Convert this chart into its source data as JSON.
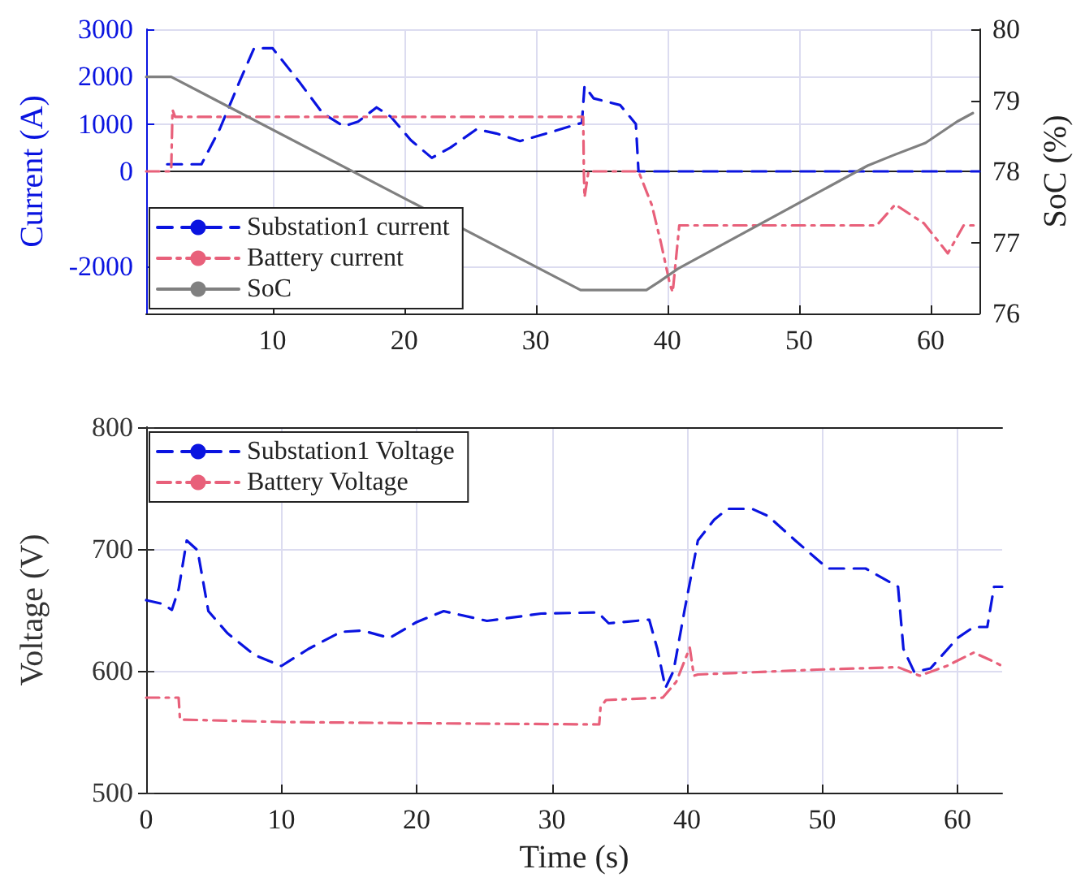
{
  "chart_data": [
    {
      "type": "line",
      "ylabel": "Current (A)",
      "y2label": "SoC (%)",
      "xlim": [
        0.4,
        63.7
      ],
      "xticks": [
        10,
        20,
        30,
        40,
        50,
        60
      ],
      "ylim": [
        -3000,
        3000
      ],
      "yticks": [
        -2000,
        0,
        1000,
        2000,
        3000
      ],
      "y2lim": [
        76,
        80
      ],
      "y2ticks": [
        76,
        77,
        78,
        79,
        80
      ],
      "grid": true,
      "legend": "bottom left",
      "marker": "none",
      "series": [
        {
          "name": "Substation1 current",
          "color": "#0a14e0",
          "line_style": "dashed",
          "x": [
            2.0,
            4.6,
            6,
            7.5,
            8.6,
            10,
            12,
            13.8,
            15.4,
            16.5,
            17.9,
            19,
            20.5,
            22.1,
            23.5,
            25.5,
            27,
            28.8,
            30.5,
            33.5,
            33.7,
            34.4,
            36.4,
            37.6,
            37.8,
            63.7
          ],
          "values": [
            150,
            150,
            900,
            1900,
            2600,
            2600,
            1900,
            1230,
            950,
            1050,
            1350,
            1150,
            660,
            285,
            500,
            890,
            800,
            640,
            775,
            1025,
            1800,
            1540,
            1400,
            1000,
            0,
            0
          ]
        },
        {
          "name": "Battery current",
          "color": "#e8607a",
          "line_style": "dashdot",
          "x": [
            0.4,
            2.3,
            2.4,
            2.6,
            33.6,
            33.65,
            33.7,
            34,
            37.8,
            38.8,
            39.5,
            40.2,
            40.4,
            40.9,
            55.9,
            57.3,
            59.5,
            61.3,
            62.5,
            63.7
          ],
          "values": [
            0,
            0,
            1300,
            1150,
            1150,
            0,
            -550,
            0,
            0,
            -700,
            -1500,
            -2400,
            -2550,
            -1140,
            -1140,
            -700,
            -1100,
            -1730,
            -1140,
            -1140
          ]
        },
        {
          "name": "SoC",
          "color": "#808080",
          "line_style": "solid",
          "axis": "y2",
          "x": [
            0.4,
            2.3,
            33.4,
            38.4,
            39.4,
            40.8,
            55.2,
            57.2,
            59.6,
            62.0,
            63.2
          ],
          "values": [
            79.33,
            79.33,
            76.33,
            76.33,
            76.45,
            76.63,
            78.08,
            78.23,
            78.4,
            78.7,
            78.82
          ]
        }
      ]
    },
    {
      "type": "line",
      "xlabel": "Time (s)",
      "ylabel": "Voltage (V)",
      "xlim": [
        0,
        63.3
      ],
      "xticks": [
        0,
        10,
        20,
        30,
        40,
        50,
        60
      ],
      "ylim": [
        500,
        800
      ],
      "yticks": [
        500,
        600,
        700,
        800
      ],
      "grid": true,
      "legend": "top left",
      "marker": "none",
      "series": [
        {
          "name": "Substation1 Voltage",
          "color": "#0a14e0",
          "line_style": "dashed",
          "x": [
            0,
            1.2,
            1.9,
            2.4,
            3,
            3.8,
            4.6,
            6,
            8,
            10,
            12,
            14.4,
            16,
            18,
            20,
            22,
            25.2,
            29.2,
            33.4,
            34.2,
            37.2,
            37.8,
            38.4,
            39,
            39.8,
            40.8,
            42,
            43,
            44.8,
            46,
            48,
            50.4,
            53.2,
            55.6,
            56,
            56.8,
            58,
            60,
            61.2,
            62.2,
            62.7,
            63.3
          ],
          "values": [
            658,
            655,
            650,
            667,
            707,
            699,
            649,
            631,
            613,
            604,
            618,
            632,
            633,
            627,
            640,
            649,
            641,
            647,
            648,
            639,
            642,
            618,
            586,
            600,
            649,
            707,
            724,
            733,
            733,
            727,
            707,
            684,
            684,
            669,
            618,
            599,
            602,
            627,
            636,
            636,
            669,
            669
          ]
        },
        {
          "name": "Battery Voltage",
          "color": "#e8607a",
          "line_style": "dashdot",
          "x": [
            0,
            2.4,
            2.5,
            10,
            20,
            33.5,
            33.6,
            34,
            38.2,
            39.2,
            40.2,
            40.5,
            40.8,
            49.6,
            55.6,
            57.2,
            59.2,
            61.2,
            62.4,
            63.3
          ],
          "values": [
            578,
            578,
            560,
            558,
            557,
            556,
            570,
            576,
            578,
            591,
            619,
            596,
            597,
            601,
            603,
            596,
            604,
            615,
            609,
            604
          ]
        }
      ]
    }
  ]
}
